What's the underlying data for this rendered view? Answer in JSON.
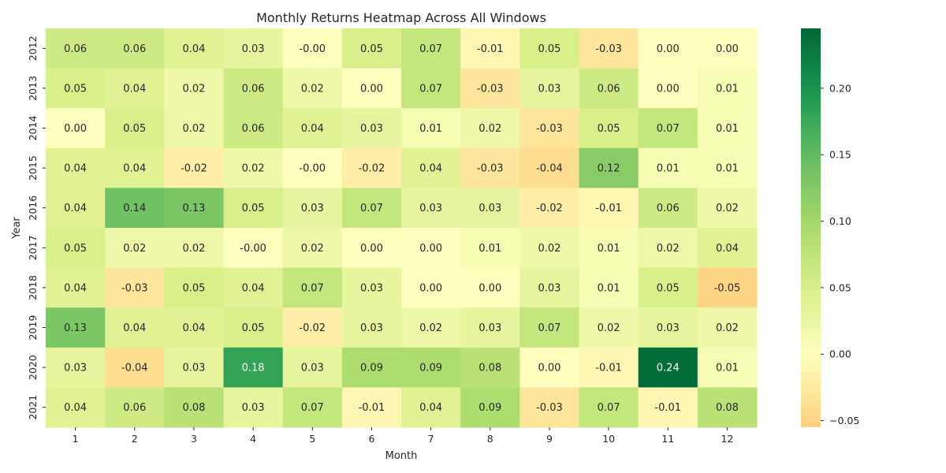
{
  "chart_data": {
    "type": "heatmap",
    "title": "Monthly Returns Heatmap Across All Windows",
    "xlabel": "Month",
    "ylabel": "Year",
    "x_categories": [
      "1",
      "2",
      "3",
      "4",
      "5",
      "6",
      "7",
      "8",
      "9",
      "10",
      "11",
      "12"
    ],
    "y_categories": [
      "2012",
      "2013",
      "2014",
      "2015",
      "2016",
      "2017",
      "2018",
      "2019",
      "2020",
      "2021"
    ],
    "values": [
      [
        0.06,
        0.06,
        0.04,
        0.03,
        -0.0,
        0.05,
        0.07,
        -0.01,
        0.05,
        -0.03,
        0.0,
        0.0
      ],
      [
        0.05,
        0.04,
        0.02,
        0.06,
        0.02,
        0.0,
        0.07,
        -0.03,
        0.03,
        0.06,
        0.0,
        0.01
      ],
      [
        0.0,
        0.05,
        0.02,
        0.06,
        0.04,
        0.03,
        0.01,
        0.02,
        -0.03,
        0.05,
        0.07,
        0.01
      ],
      [
        0.04,
        0.04,
        -0.02,
        0.02,
        -0.0,
        -0.02,
        0.04,
        -0.03,
        -0.04,
        0.12,
        0.01,
        0.01
      ],
      [
        0.04,
        0.14,
        0.13,
        0.05,
        0.03,
        0.07,
        0.03,
        0.03,
        -0.02,
        -0.01,
        0.06,
        0.02
      ],
      [
        0.05,
        0.02,
        0.02,
        -0.0,
        0.02,
        0.0,
        0.0,
        0.01,
        0.02,
        0.01,
        0.02,
        0.04
      ],
      [
        0.04,
        -0.03,
        0.05,
        0.04,
        0.07,
        0.03,
        0.0,
        0.0,
        0.03,
        0.01,
        0.05,
        -0.05
      ],
      [
        0.13,
        0.04,
        0.04,
        0.05,
        -0.02,
        0.03,
        0.02,
        0.03,
        0.07,
        0.02,
        0.03,
        0.02
      ],
      [
        0.03,
        -0.04,
        0.03,
        0.18,
        0.03,
        0.09,
        0.09,
        0.08,
        0.0,
        -0.01,
        0.24,
        0.01
      ],
      [
        0.04,
        0.06,
        0.08,
        0.03,
        0.07,
        -0.01,
        0.04,
        0.09,
        -0.03,
        0.07,
        -0.01,
        0.08
      ]
    ],
    "value_labels": [
      [
        "0.06",
        "0.06",
        "0.04",
        "0.03",
        "-0.00",
        "0.05",
        "0.07",
        "-0.01",
        "0.05",
        "-0.03",
        "0.00",
        "0.00"
      ],
      [
        "0.05",
        "0.04",
        "0.02",
        "0.06",
        "0.02",
        "0.00",
        "0.07",
        "-0.03",
        "0.03",
        "0.06",
        "0.00",
        "0.01"
      ],
      [
        "0.00",
        "0.05",
        "0.02",
        "0.06",
        "0.04",
        "0.03",
        "0.01",
        "0.02",
        "-0.03",
        "0.05",
        "0.07",
        "0.01"
      ],
      [
        "0.04",
        "0.04",
        "-0.02",
        "0.02",
        "-0.00",
        "-0.02",
        "0.04",
        "-0.03",
        "-0.04",
        "0.12",
        "0.01",
        "0.01"
      ],
      [
        "0.04",
        "0.14",
        "0.13",
        "0.05",
        "0.03",
        "0.07",
        "0.03",
        "0.03",
        "-0.02",
        "-0.01",
        "0.06",
        "0.02"
      ],
      [
        "0.05",
        "0.02",
        "0.02",
        "-0.00",
        "0.02",
        "0.00",
        "0.00",
        "0.01",
        "0.02",
        "0.01",
        "0.02",
        "0.04"
      ],
      [
        "0.04",
        "-0.03",
        "0.05",
        "0.04",
        "0.07",
        "0.03",
        "0.00",
        "0.00",
        "0.03",
        "0.01",
        "0.05",
        "-0.05"
      ],
      [
        "0.13",
        "0.04",
        "0.04",
        "0.05",
        "-0.02",
        "0.03",
        "0.02",
        "0.03",
        "0.07",
        "0.02",
        "0.03",
        "0.02"
      ],
      [
        "0.03",
        "-0.04",
        "0.03",
        "0.18",
        "0.03",
        "0.09",
        "0.09",
        "0.08",
        "0.00",
        "-0.01",
        "0.24",
        "0.01"
      ],
      [
        "0.04",
        "0.06",
        "0.08",
        "0.03",
        "0.07",
        "-0.01",
        "0.04",
        "0.09",
        "-0.03",
        "0.07",
        "-0.01",
        "0.08"
      ]
    ],
    "colorbar": {
      "range": [
        -0.055,
        0.245
      ],
      "ticks": [
        -0.05,
        0.0,
        0.05,
        0.1,
        0.15,
        0.2
      ],
      "tick_labels": [
        "−0.05",
        "0.00",
        "0.05",
        "0.10",
        "0.15",
        "0.20"
      ],
      "center": 0.0
    },
    "colormap": "RdYlGn (centered at 0)",
    "colors": {
      "negative_max": "#fdd17f",
      "zero": "#feffbe",
      "positive_max": "#006837",
      "text_dark": "#262626",
      "text_light": "#ffffff"
    }
  }
}
